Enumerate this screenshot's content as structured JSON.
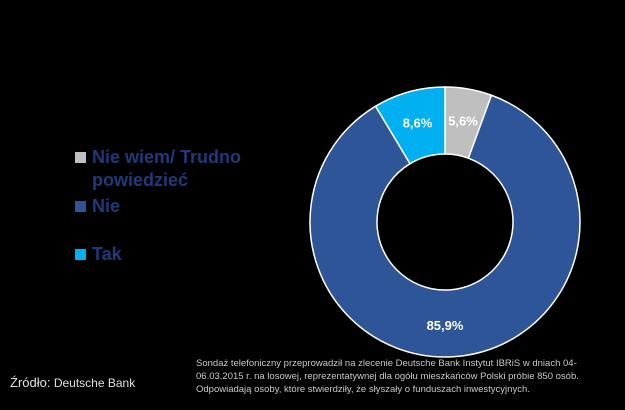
{
  "chart_data": {
    "type": "pie",
    "subtype": "donut",
    "title_lines": [
      "",
      ""
    ],
    "categories": [
      "Nie wiem/ Trudno powiedzieć",
      "Nie",
      "Tak"
    ],
    "values": [
      5.6,
      85.9,
      8.6
    ],
    "data_labels": [
      "5,6%",
      "85,9%",
      "8,6%"
    ],
    "colors": [
      "#bfbfbf",
      "#2e5597",
      "#00b0f0"
    ],
    "label_color": "#ffffff",
    "legend_text_color": "#1f3a7a",
    "legend_position": "left",
    "background": "#000000"
  },
  "source": {
    "label": "Źródło:",
    "value": "Deutsche Bank"
  },
  "note": "Sondaż telefoniczny przeprowadził  na zlecenie Deutsche Bank  Instytut  IBRiS w dniach 04-06.03.2015 r. na losowej, reprezentatywnej  dla  ogółu mieszkańców Polski próbie  850 osób. Odpowiadają osoby, które  stwierdziły, że słyszały o funduszach inwestycyjnych."
}
